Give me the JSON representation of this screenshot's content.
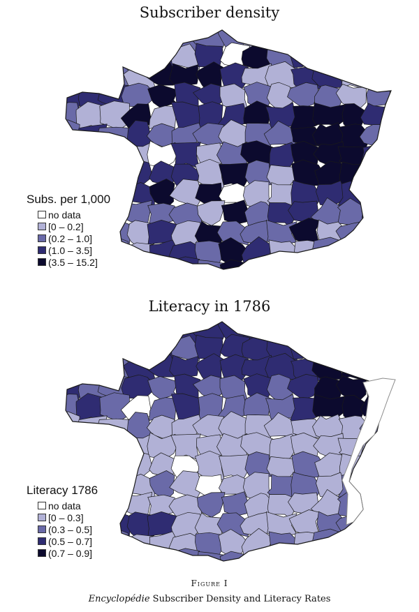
{
  "colors": {
    "no_data": "#ffffff",
    "class_1": "#b1b1d6",
    "class_2": "#6a6aa8",
    "class_3": "#2f2c72",
    "class_4": "#0c0a2e",
    "border": "#1a1a1a",
    "missing_border": "#8a8a8a"
  },
  "maps": [
    {
      "title": "Subscriber density",
      "legend_title": "Subs. per 1,000",
      "legend": [
        "no data",
        "[0 – 0.2]",
        "(0.2 – 1.0]",
        "(1.0 – 3.5]",
        "(3.5 – 15.2]"
      ]
    },
    {
      "title": "Literacy in 1786",
      "legend_title": "Literacy 1786",
      "legend": [
        "no data",
        "[0 – 0.3]",
        "(0.3 – 0.5]",
        "(0.5 – 0.7]",
        "(0.7 – 0.9]"
      ]
    }
  ],
  "figure": {
    "label": "Figure I",
    "caption_italic": "Encyclopédie",
    "caption_rest": " Subscriber Density and Literacy Rates"
  }
}
